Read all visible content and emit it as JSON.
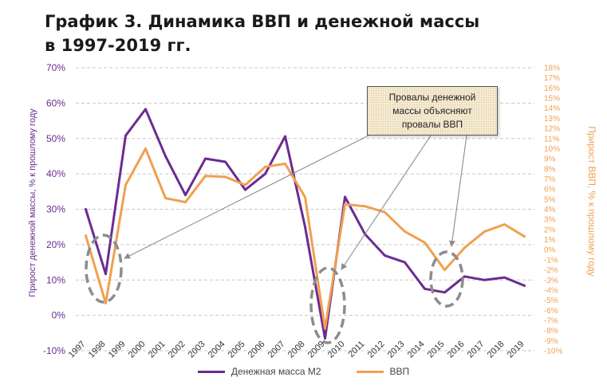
{
  "title": {
    "line1": "График 3. Динамика ВВП и денежной массы",
    "line2": "в 1997-2019 гг."
  },
  "callout": {
    "text": "Провалы денежной\nмассы объясняют\nпровалы ВВП"
  },
  "legend": {
    "m2_label": "Денежная  масса  М2",
    "gdp_label": "ВВП"
  },
  "colors": {
    "m2": "#6a2c91",
    "gdp": "#f0a050",
    "left_axis_text": "#6a2c91",
    "right_axis_text": "#f0a050",
    "grid": "#c8c8c8",
    "ellipse": "#8c8c8c",
    "arrow": "#8c8c8c"
  },
  "chart_data": {
    "type": "line",
    "x": [
      "1997",
      "1998",
      "1999",
      "2000",
      "2001",
      "2002",
      "2003",
      "2004",
      "2005",
      "2006",
      "2007",
      "2008",
      "2009",
      "2010",
      "2011",
      "2012",
      "2013",
      "2014",
      "2015",
      "2016",
      "2017",
      "2018",
      "2019"
    ],
    "ylabel": "Прирост денежной массы, % к прошлому году",
    "ylabel_right": "Прирост ВВП, % к прошлому году",
    "ylim": [
      -10,
      70
    ],
    "ylim_right": [
      -10,
      18
    ],
    "yticks": [
      "-10%",
      "0%",
      "10%",
      "20%",
      "30%",
      "40%",
      "50%",
      "60%",
      "70%"
    ],
    "yticks_right": [
      "-10%",
      "-9%",
      "-8%",
      "-7%",
      "-6%",
      "-5%",
      "-4%",
      "-3%",
      "-2%",
      "-1%",
      "0%",
      "1%",
      "2%",
      "3%",
      "4%",
      "5%",
      "6%",
      "7%",
      "8%",
      "9%",
      "10%",
      "11%",
      "12%",
      "13%",
      "14%",
      "15%",
      "16%",
      "17%",
      "18%"
    ],
    "grid": true,
    "legend_position": "bottom",
    "series": [
      {
        "name": "Денежная  масса  М2",
        "axis": "left",
        "values": [
          30.0,
          11.7,
          50.8,
          58.3,
          45.0,
          34.0,
          44.3,
          43.4,
          35.5,
          40.0,
          50.6,
          25.0,
          -6.5,
          33.5,
          23.0,
          16.9,
          15.0,
          7.5,
          6.5,
          11.0,
          10.0,
          10.7,
          8.4
        ]
      },
      {
        "name": "ВВП",
        "axis": "right",
        "values": [
          1.4,
          -5.3,
          6.4,
          10.0,
          5.1,
          4.7,
          7.3,
          7.2,
          6.4,
          8.2,
          8.5,
          5.2,
          -7.8,
          4.5,
          4.3,
          3.7,
          1.8,
          0.7,
          -2.0,
          0.2,
          1.8,
          2.5,
          1.3
        ]
      }
    ],
    "annotations": [
      "Провалы денежной\nмассы объясняют\nпровалы ВВП"
    ]
  }
}
